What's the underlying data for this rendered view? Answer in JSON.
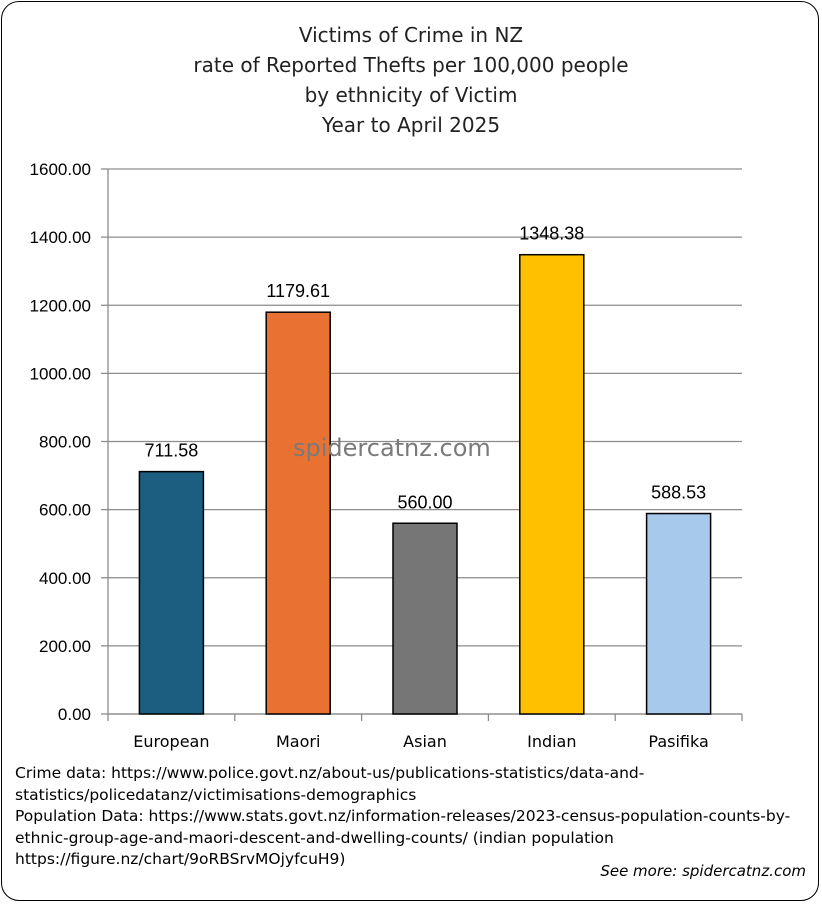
{
  "chart_data": {
    "type": "bar",
    "title_lines": [
      "Victims of Crime in NZ",
      "rate of Reported Thefts per 100,000 people",
      "by ethnicity of Victim",
      "Year to April 2025"
    ],
    "categories": [
      "European",
      "Maori",
      "Asian",
      "Indian",
      "Pasifika"
    ],
    "values": [
      711.58,
      1179.61,
      560.0,
      1348.38,
      588.53
    ],
    "value_labels": [
      "711.58",
      "1179.61",
      "560.00",
      "1348.38",
      "588.53"
    ],
    "colors": [
      "#1b5e7f",
      "#e97132",
      "#767676",
      "#ffc000",
      "#a6c9ec"
    ],
    "ylim": [
      0,
      1600
    ],
    "yticks": [
      "0.00",
      "200.00",
      "400.00",
      "600.00",
      "800.00",
      "1000.00",
      "1200.00",
      "1400.00",
      "1600.00"
    ],
    "grid": true,
    "xlabel": "",
    "ylabel": ""
  },
  "watermark": "spidercatnz.com",
  "sources": [
    "Crime data: https://www.police.govt.nz/about-us/publications-statistics/data-and-",
    "statistics/policedatanz/victimisations-demographics",
    "Population Data: https://www.stats.govt.nz/information-releases/2023-census-population-counts-by-",
    "ethnic-group-age-and-maori-descent-and-dwelling-counts/ (indian population",
    "https://figure.nz/chart/9oRBSrvMOjyfcuH9)"
  ],
  "see_more": "See more: spidercatnz.com"
}
